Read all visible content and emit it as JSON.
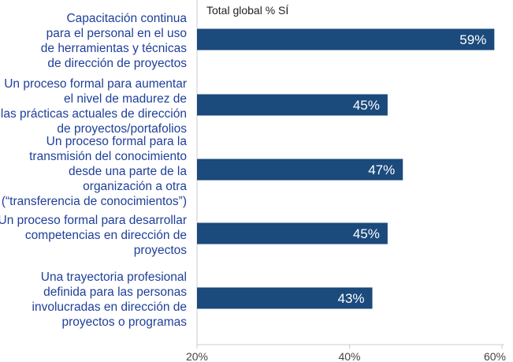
{
  "chart_data": {
    "type": "bar",
    "orientation": "horizontal",
    "subtitle": "Total global  % SÍ",
    "categories": [
      [
        "Capacitación continua",
        "para el personal en el uso",
        "de herramientas y técnicas",
        "de dirección de proyectos"
      ],
      [
        "Un proceso formal para aumentar",
        "el nivel de madurez de",
        "las prácticas actuales de dirección",
        "de proyectos/portafolios"
      ],
      [
        "Un proceso formal para la",
        "transmisión del conocimiento",
        "desde una parte de la",
        "organización a otra",
        "(“transferencia de conocimientos”)"
      ],
      [
        "Un proceso formal para desarrollar",
        "competencias en dirección de",
        "proyectos"
      ],
      [
        "Una trayectoria profesional",
        "definida para las personas",
        "involucradas en dirección de",
        "proyectos o programas"
      ]
    ],
    "values": [
      59,
      45,
      47,
      45,
      43
    ],
    "data_labels": [
      "59%",
      "45%",
      "47%",
      "45%",
      "43%"
    ],
    "xlim": [
      20,
      60
    ],
    "xticks": [
      20,
      40,
      60
    ],
    "xtick_labels": [
      "20%",
      "40%",
      "60%"
    ],
    "grid": false,
    "bar_color": "#1b4a7c",
    "label_color": "#1f3f99"
  }
}
